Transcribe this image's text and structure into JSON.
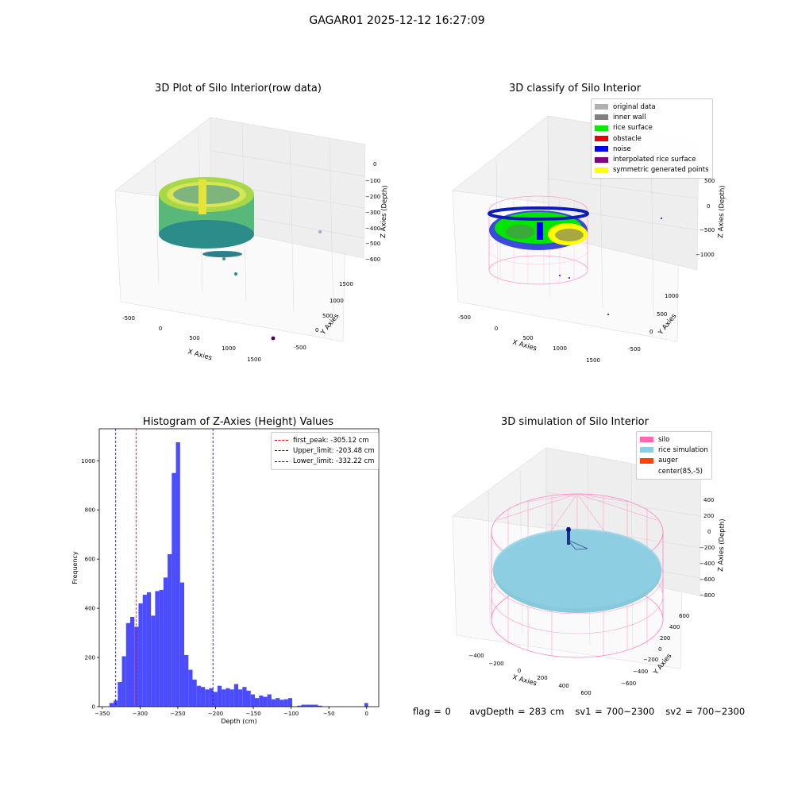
{
  "figure": {
    "suptitle": "GAGAR01 2025-12-12 16:27:09",
    "status": {
      "flag": "flag = 0",
      "avgDepth": "avgDepth = 283 cm",
      "sv1": "sv1 = 700~2300",
      "sv2": "sv2 = 700~2300"
    }
  },
  "chart_data": [
    {
      "type": "scatter",
      "subtype": "3d-scatter",
      "title": "3D Plot of Silo Interior(row data)",
      "xlabel": "X Axies",
      "ylabel": "Y Axies",
      "zlabel": "Z Axies (Depth)",
      "xticks": [
        "-500",
        "0",
        "500",
        "1000",
        "1500"
      ],
      "yticks": [
        "-500",
        "0",
        "500",
        "1000",
        "1500"
      ],
      "zticks": [
        "0",
        "−100",
        "−200",
        "−300",
        "−400",
        "−500",
        "−600"
      ],
      "colormap": "viridis",
      "content": "cylindrical cloud of points colored by depth, plus a few scattered outliers"
    },
    {
      "type": "scatter",
      "subtype": "3d-scatter",
      "title": "3D classify of Silo Interior",
      "xlabel": "X Axies",
      "ylabel": "Y Axies",
      "zlabel": "Z Axies (Depth)",
      "xticks": [
        "-500",
        "0",
        "500",
        "1000",
        "1500"
      ],
      "yticks": [
        "-500",
        "0",
        "500",
        "1000"
      ],
      "zticks": [
        "500",
        "0",
        "−500",
        "−1000"
      ],
      "legend": [
        {
          "label": "original data",
          "color": "#b0b0b0"
        },
        {
          "label": "inner wall",
          "color": "#808080"
        },
        {
          "label": "rice surface",
          "color": "#00ee00"
        },
        {
          "label": "obstacle",
          "color": "#ee0000"
        },
        {
          "label": "noise",
          "color": "#0000ee"
        },
        {
          "label": "interpolated rice surface",
          "color": "#800080"
        },
        {
          "label": "symmetric generated points",
          "color": "#ffff00"
        }
      ]
    },
    {
      "type": "bar",
      "subtype": "histogram",
      "title": "Histogram of Z-Axies (Height) Values",
      "xlabel": "Depth (cm)",
      "ylabel": "Frequency",
      "xlim": [
        -354,
        16
      ],
      "ylim": [
        0,
        1130
      ],
      "xticks": [
        "−350",
        "−300",
        "−250",
        "−200",
        "−150",
        "−100",
        "−50",
        "0"
      ],
      "yticks": [
        "0",
        "200",
        "400",
        "600",
        "800",
        "1000"
      ],
      "bar_color": "#4c4cff",
      "bins": [
        [
          -340.5,
          -335,
          15
        ],
        [
          -335,
          -329.5,
          25
        ],
        [
          -329.5,
          -324,
          100
        ],
        [
          -324,
          -318.5,
          205
        ],
        [
          -318.5,
          -313,
          340
        ],
        [
          -313,
          -307.5,
          365
        ],
        [
          -307.5,
          -302,
          325
        ],
        [
          -302,
          -296.5,
          420
        ],
        [
          -296.5,
          -291,
          455
        ],
        [
          -291,
          -285.5,
          465
        ],
        [
          -285.5,
          -280,
          370
        ],
        [
          -280,
          -274.5,
          470
        ],
        [
          -274.5,
          -269,
          475
        ],
        [
          -269,
          -263.5,
          525
        ],
        [
          -263.5,
          -258,
          620
        ],
        [
          -258,
          -252.5,
          950
        ],
        [
          -252.5,
          -247,
          1075
        ],
        [
          -247,
          -241.5,
          505
        ],
        [
          -241.5,
          -236,
          210
        ],
        [
          -236,
          -230.5,
          150
        ],
        [
          -230.5,
          -225,
          110
        ],
        [
          -225,
          -219.5,
          85
        ],
        [
          -219.5,
          -214,
          80
        ],
        [
          -214,
          -208.5,
          70
        ],
        [
          -208.5,
          -203,
          75
        ],
        [
          -203,
          -197.5,
          60
        ],
        [
          -197.5,
          -192,
          85
        ],
        [
          -192,
          -186.5,
          70
        ],
        [
          -186.5,
          -181,
          75
        ],
        [
          -181,
          -175.5,
          70
        ],
        [
          -175.5,
          -170,
          92
        ],
        [
          -170,
          -164.5,
          70
        ],
        [
          -164.5,
          -159,
          80
        ],
        [
          -159,
          -153.5,
          65
        ],
        [
          -153.5,
          -148,
          50
        ],
        [
          -148,
          -142.5,
          35
        ],
        [
          -142.5,
          -137,
          45
        ],
        [
          -137,
          -131.5,
          40
        ],
        [
          -131.5,
          -126,
          50
        ],
        [
          -126,
          -120.5,
          30
        ],
        [
          -120.5,
          -115,
          35
        ],
        [
          -115,
          -109.5,
          28
        ],
        [
          -109.5,
          -104,
          30
        ],
        [
          -104,
          -98.5,
          35
        ],
        [
          -92,
          -86.5,
          4
        ],
        [
          -86.5,
          -81,
          8
        ],
        [
          -81,
          -75.5,
          8
        ],
        [
          -75.5,
          -70,
          8
        ],
        [
          -70,
          -64.5,
          8
        ],
        [
          -64.5,
          -59,
          4
        ],
        [
          -3,
          2,
          15
        ]
      ],
      "vlines": [
        {
          "label": "first_peak: -305.12 cm",
          "x": -305.12,
          "color": "#ee0000"
        },
        {
          "label": "Upper_limit: -203.48 cm",
          "x": -203.48,
          "color": "#0000cc"
        },
        {
          "label": "Lower_limit: -332.22 cm",
          "x": -332.22,
          "color": "#0000cc"
        }
      ]
    },
    {
      "type": "scatter",
      "subtype": "3d-surface",
      "title": "3D simulation of Silo Interior",
      "xlabel": "X Axies",
      "ylabel": "Y Axies",
      "zlabel": "Z Axies (Depth)",
      "xticks": [
        "−400",
        "−200",
        "0",
        "200",
        "400",
        "600"
      ],
      "yticks": [
        "−600",
        "−400",
        "−200",
        "0",
        "200",
        "400",
        "600"
      ],
      "zticks": [
        "400",
        "200",
        "0",
        "−200",
        "−400",
        "−600",
        "−800"
      ],
      "legend": [
        {
          "label": "silo",
          "color": "#ff69b4"
        },
        {
          "label": "rice simulation",
          "color": "#87ceeb"
        },
        {
          "label": "auger",
          "color": "#ff4500"
        },
        {
          "label": "center(85,-5)",
          "color": ""
        }
      ]
    }
  ]
}
